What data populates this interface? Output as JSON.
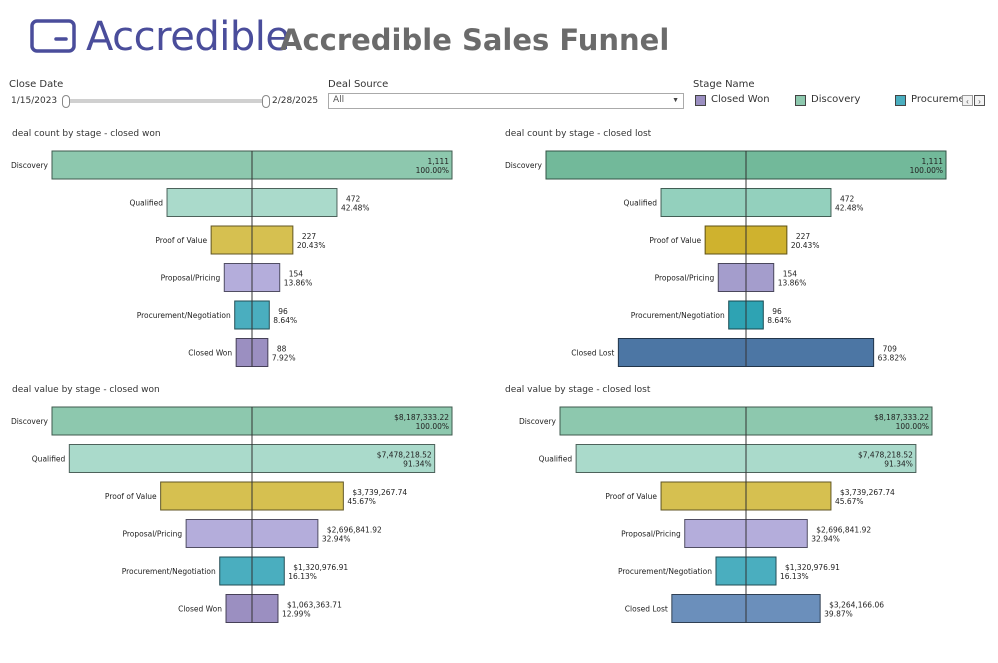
{
  "header": {
    "logo_text": "Accredible",
    "title": "Accredible Sales Funnel"
  },
  "filters": {
    "close_date": {
      "label": "Close Date",
      "start": "1/15/2023",
      "end": "2/28/2025"
    },
    "deal_source": {
      "label": "Deal Source",
      "value": "All"
    },
    "stage_name": {
      "label": "Stage Name",
      "items": [
        {
          "label": "Closed Won",
          "color": "#9b8fc1"
        },
        {
          "label": "Discovery",
          "color": "#8dc8ae"
        },
        {
          "label": "Procurement/Negotiation",
          "color": "#4aaebf"
        }
      ]
    }
  },
  "chart_data": [
    {
      "type": "bar",
      "title": "deal count by stage - closed won",
      "categories": [
        "Discovery",
        "Qualified",
        "Proof of Value",
        "Proposal/Pricing",
        "Procurement/Negotiation",
        "Closed Won"
      ],
      "values": [
        1111,
        472,
        227,
        154,
        96,
        88
      ],
      "value_labels": [
        "1,111",
        "472",
        "227",
        "154",
        "96",
        "88"
      ],
      "percent_labels": [
        "100.00%",
        "42.48%",
        "20.43%",
        "13.86%",
        "8.64%",
        "7.92%"
      ],
      "colors": [
        "#8dc8ae",
        "#aadacb",
        "#d6c050",
        "#b4addb",
        "#4aaebf",
        "#9b8fc1"
      ]
    },
    {
      "type": "bar",
      "title": "deal count by stage - closed lost",
      "categories": [
        "Discovery",
        "Qualified",
        "Proof of Value",
        "Proposal/Pricing",
        "Procurement/Negotiation",
        "Closed Lost"
      ],
      "values": [
        1111,
        472,
        227,
        154,
        96,
        709
      ],
      "value_labels": [
        "1,111",
        "472",
        "227",
        "154",
        "96",
        "709"
      ],
      "percent_labels": [
        "100.00%",
        "42.48%",
        "20.43%",
        "13.86%",
        "8.64%",
        "63.82%"
      ],
      "colors": [
        "#72b99a",
        "#93d0bd",
        "#cfb22e",
        "#a49dcc",
        "#2ea3b3",
        "#4c76a4"
      ]
    },
    {
      "type": "bar",
      "title": "deal value by stage - closed won",
      "categories": [
        "Discovery",
        "Qualified",
        "Proof of Value",
        "Proposal/Pricing",
        "Procurement/Negotiation",
        "Closed Won"
      ],
      "values": [
        8187333.22,
        7478218.52,
        3739267.74,
        2696841.92,
        1320976.91,
        1063363.71
      ],
      "value_labels": [
        "$8,187,333.22",
        "$7,478,218.52",
        "$3,739,267.74",
        "$2,696,841.92",
        "$1,320,976.91",
        "$1,063,363.71"
      ],
      "percent_labels": [
        "100.00%",
        "91.34%",
        "45.67%",
        "32.94%",
        "16.13%",
        "12.99%"
      ],
      "colors": [
        "#8dc8ae",
        "#aadacb",
        "#d6c050",
        "#b4addb",
        "#4aaebf",
        "#9b8fc1"
      ]
    },
    {
      "type": "bar",
      "title": "deal value by stage - closed lost",
      "categories": [
        "Discovery",
        "Qualified",
        "Proof of Value",
        "Proposal/Pricing",
        "Procurement/Negotiation",
        "Closed Lost"
      ],
      "values": [
        8187333.22,
        7478218.52,
        3739267.74,
        2696841.92,
        1320976.91,
        3264166.06
      ],
      "value_labels": [
        "$8,187,333.22",
        "$7,478,218.52",
        "$3,739,267.74",
        "$2,696,841.92",
        "$1,320,976.91",
        "$3,264,166.06"
      ],
      "percent_labels": [
        "100.00%",
        "91.34%",
        "45.67%",
        "32.94%",
        "16.13%",
        "39.87%"
      ],
      "colors": [
        "#8dc8ae",
        "#aadacb",
        "#d6c050",
        "#b4addb",
        "#4aaebf",
        "#6b8fbb"
      ]
    }
  ]
}
